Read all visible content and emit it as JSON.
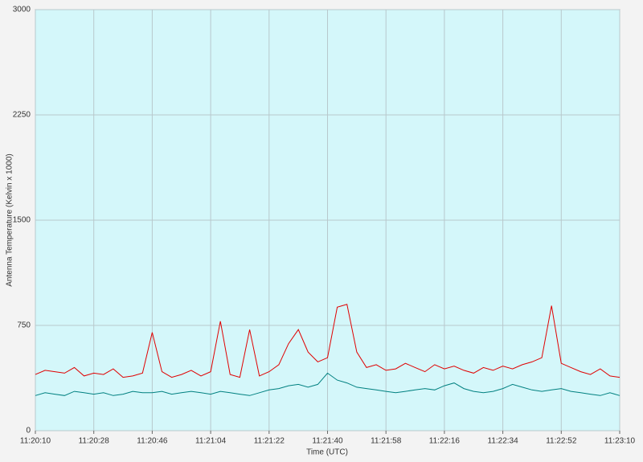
{
  "chart_data": {
    "type": "line",
    "y_label": "Antenna Temperature (Kelvin x 1000)",
    "x_label": "Time (UTC)",
    "x": [
      "11:20:10",
      "11:20:13",
      "11:20:16",
      "11:20:19",
      "11:20:22",
      "11:20:25",
      "11:20:28",
      "11:20:31",
      "11:20:34",
      "11:20:37",
      "11:20:40",
      "11:20:43",
      "11:20:46",
      "11:20:49",
      "11:20:52",
      "11:20:55",
      "11:20:58",
      "11:21:01",
      "11:21:04",
      "11:21:07",
      "11:21:10",
      "11:21:13",
      "11:21:16",
      "11:21:19",
      "11:21:22",
      "11:21:25",
      "11:21:28",
      "11:21:31",
      "11:21:34",
      "11:21:37",
      "11:21:40",
      "11:21:43",
      "11:21:46",
      "11:21:49",
      "11:21:52",
      "11:21:55",
      "11:21:58",
      "11:22:01",
      "11:22:04",
      "11:22:07",
      "11:22:10",
      "11:22:13",
      "11:22:16",
      "11:22:19",
      "11:22:22",
      "11:22:25",
      "11:22:28",
      "11:22:31",
      "11:22:34",
      "11:22:37",
      "11:22:40",
      "11:22:43",
      "11:22:46",
      "11:22:49",
      "11:22:52",
      "11:22:55",
      "11:22:58",
      "11:23:01",
      "11:23:04",
      "11:23:07",
      "11:23:10"
    ],
    "series": [
      {
        "color": "#e00000",
        "values": [
          400,
          430,
          420,
          410,
          450,
          390,
          410,
          400,
          440,
          380,
          390,
          410,
          700,
          420,
          380,
          400,
          430,
          390,
          420,
          780,
          400,
          380,
          720,
          390,
          420,
          470,
          620,
          720,
          560,
          490,
          520,
          880,
          900,
          560,
          450,
          470,
          430,
          440,
          480,
          450,
          420,
          470,
          440,
          460,
          430,
          410,
          450,
          430,
          460,
          440,
          470,
          490,
          520,
          890,
          480,
          450,
          420,
          400,
          440,
          390,
          380
        ]
      },
      {
        "color": "#008080",
        "values": [
          250,
          270,
          260,
          250,
          280,
          270,
          260,
          270,
          250,
          260,
          280,
          270,
          270,
          280,
          260,
          270,
          280,
          270,
          260,
          280,
          270,
          260,
          250,
          270,
          290,
          300,
          320,
          330,
          310,
          330,
          410,
          360,
          340,
          310,
          300,
          290,
          280,
          270,
          280,
          290,
          300,
          290,
          320,
          340,
          300,
          280,
          270,
          280,
          300,
          330,
          310,
          290,
          280,
          290,
          300,
          280,
          270,
          260,
          250,
          270,
          250
        ]
      }
    ],
    "xlim": [
      "11:20:10",
      "11:23:10"
    ],
    "xticks": [
      "11:20:10",
      "11:20:28",
      "11:20:46",
      "11:21:04",
      "11:21:22",
      "11:21:40",
      "11:21:58",
      "11:22:16",
      "11:22:34",
      "11:22:52",
      "11:23:10"
    ],
    "ylim": [
      0,
      3000
    ],
    "yticks": [
      0,
      750,
      1500,
      2250,
      3000
    ],
    "grid": true
  }
}
